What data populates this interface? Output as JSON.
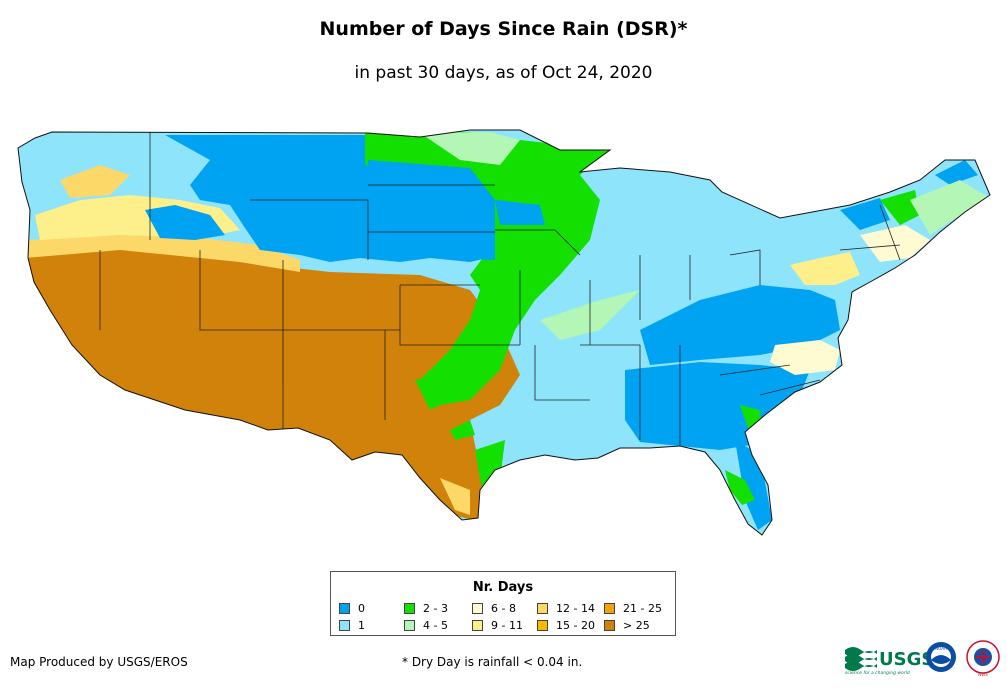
{
  "title": "Number of Days Since Rain (DSR)*",
  "subtitle": "in past 30 days, as of Oct 24, 2020",
  "legend": {
    "title": "Nr. Days",
    "items": [
      {
        "label": "0",
        "color": "#00a2f2"
      },
      {
        "label": "1",
        "color": "#8ee4fb"
      },
      {
        "label": "2 - 3",
        "color": "#13e000"
      },
      {
        "label": "4 - 5",
        "color": "#b3f6b6"
      },
      {
        "label": "6 - 8",
        "color": "#fefbd2"
      },
      {
        "label": "9 - 11",
        "color": "#fdf08a"
      },
      {
        "label": "12 - 14",
        "color": "#fbd867"
      },
      {
        "label": "15 - 20",
        "color": "#fbba00"
      },
      {
        "label": "21 - 25",
        "color": "#f1a20e"
      },
      {
        "label": "> 25",
        "color": "#d1820a"
      }
    ]
  },
  "credit": "Map Produced by USGS/EROS",
  "footnote": "* Dry Day is rainfall < 0.04 in.",
  "logos": {
    "usgs_text": "USGS",
    "usgs_tagline": "science for a changing world",
    "noaa_text": "NOAA",
    "nws_text": "NWS"
  }
}
